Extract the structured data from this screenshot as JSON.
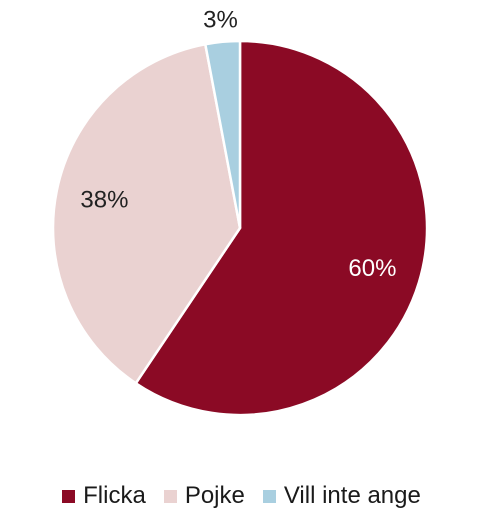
{
  "chart_data": {
    "type": "pie",
    "categories": [
      "Flicka",
      "Pojke",
      "Vill inte ange"
    ],
    "values": [
      60,
      38,
      3
    ],
    "data_labels": [
      "60%",
      "38%",
      "3%"
    ],
    "colors": [
      "#8b0a25",
      "#ead2d1",
      "#a9cfe0"
    ],
    "label_colors": [
      "#ffffff",
      "#222222",
      "#222222"
    ],
    "legend_placement": "bottom",
    "start_angle_deg": 0,
    "direction": "clockwise"
  }
}
